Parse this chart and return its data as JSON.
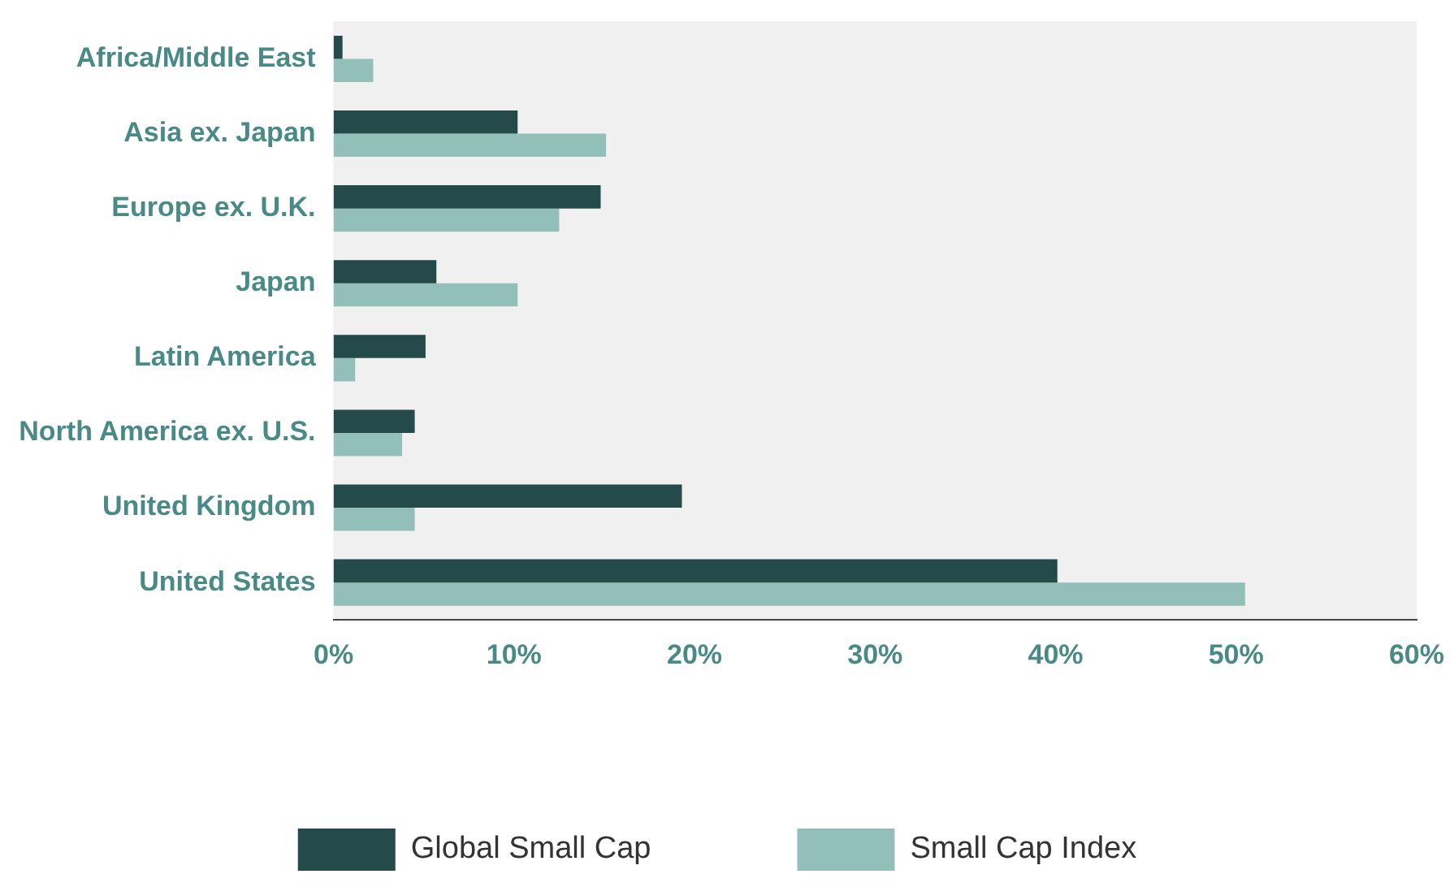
{
  "chart_data": {
    "type": "bar",
    "orientation": "horizontal",
    "categories": [
      "Africa/Middle East",
      "Asia ex. Japan",
      "Europe ex. U.K.",
      "Japan",
      "Latin America",
      "North America ex. U.S.",
      "United Kingdom",
      "United States"
    ],
    "series": [
      {
        "name": "Global Small Cap",
        "color": "#244a4a",
        "values": [
          0.5,
          10.2,
          14.8,
          5.7,
          5.1,
          4.5,
          19.3,
          40.1
        ]
      },
      {
        "name": "Small Cap Index",
        "color": "#93bfb9",
        "values": [
          2.2,
          15.1,
          12.5,
          10.2,
          1.2,
          3.8,
          4.5,
          50.5
        ]
      }
    ],
    "xlim": [
      0,
      60
    ],
    "xticks": [
      {
        "value": 0,
        "label": "0%"
      },
      {
        "value": 10,
        "label": "10%"
      },
      {
        "value": 20,
        "label": "20%"
      },
      {
        "value": 30,
        "label": "30%"
      },
      {
        "value": 40,
        "label": "40%"
      },
      {
        "value": 50,
        "label": "50%"
      },
      {
        "value": 60,
        "label": "60%"
      }
    ],
    "grid": false,
    "legend": "bottom"
  }
}
